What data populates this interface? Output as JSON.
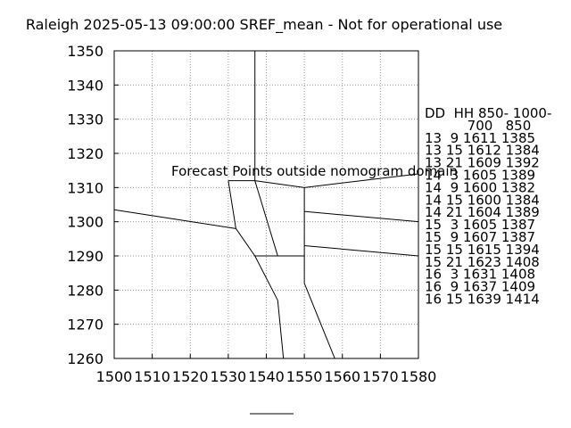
{
  "chart_data": {
    "type": "line",
    "title": "Raleigh 2025-05-13 09:00:00 SREF_mean - Not for operational use",
    "xlabel": "",
    "ylabel": "",
    "xlim": [
      1500,
      1580
    ],
    "ylim": [
      1260,
      1350
    ],
    "xticks": [
      1500,
      1510,
      1520,
      1530,
      1540,
      1550,
      1560,
      1570,
      1580
    ],
    "yticks": [
      1260,
      1270,
      1280,
      1290,
      1300,
      1310,
      1320,
      1330,
      1340,
      1350
    ],
    "grid": true,
    "annotation": {
      "text": "Forecast Points outside nomogram domain",
      "color": "#ff0000"
    },
    "series": [
      {
        "x": [
          1537,
          1537
        ],
        "y": [
          1350,
          1312
        ]
      },
      {
        "x": [
          1530,
          1537,
          1550,
          1580
        ],
        "y": [
          1312,
          1312,
          1310,
          1314
        ]
      },
      {
        "x": [
          1530,
          1532,
          1537,
          1550,
          1550
        ],
        "y": [
          1312,
          1298,
          1290,
          1290,
          1310
        ]
      },
      {
        "x": [
          1500,
          1532
        ],
        "y": [
          1303.5,
          1298
        ]
      },
      {
        "x": [
          1537,
          1543,
          1543
        ],
        "y": [
          1312,
          1290,
          1290
        ]
      },
      {
        "x": [
          1550,
          1580
        ],
        "y": [
          1303,
          1300
        ]
      },
      {
        "x": [
          1550,
          1580
        ],
        "y": [
          1293,
          1290
        ]
      },
      {
        "x": [
          1537,
          1543,
          1544.5
        ],
        "y": [
          1290,
          1277,
          1260
        ]
      },
      {
        "x": [
          1550,
          1550,
          1558
        ],
        "y": [
          1290,
          1282,
          1260
        ]
      }
    ],
    "table": {
      "header": [
        "DD  HH 850- 1000-",
        "          700   850"
      ],
      "rows": [
        "13  9 1611 1385",
        "13 15 1612 1384",
        "13 21 1609 1392",
        "14  3 1605 1389",
        "14  9 1600 1382",
        "14 15 1600 1384",
        "14 21 1604 1389",
        "15  3 1605 1387",
        "15  9 1607 1387",
        "15 15 1615 1394",
        "15 21 1623 1408",
        "16  3 1631 1408",
        "16  9 1637 1409",
        "16 15 1639 1414"
      ]
    }
  }
}
